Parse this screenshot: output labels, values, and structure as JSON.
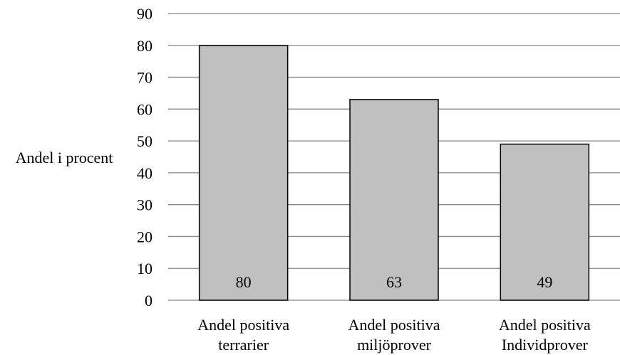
{
  "chart_data": {
    "type": "bar",
    "title": "",
    "xlabel": "",
    "ylabel": "Andel i procent",
    "ylim": [
      0,
      90
    ],
    "yticks": [
      0,
      10,
      20,
      30,
      40,
      50,
      60,
      70,
      80,
      90
    ],
    "grid": true,
    "legend": "none",
    "categories": [
      [
        "Andel positiva",
        "terrarier"
      ],
      [
        "Andel positiva",
        "miljöprover"
      ],
      [
        "Andel positiva",
        "Individprover"
      ]
    ],
    "values": [
      80,
      63,
      49
    ],
    "data_labels": [
      "80",
      "63",
      "49"
    ],
    "colors": {
      "bar_fill": "#c0c0c0",
      "bar_stroke": "#000000",
      "grid": "#868686",
      "axis": "#868686"
    }
  }
}
